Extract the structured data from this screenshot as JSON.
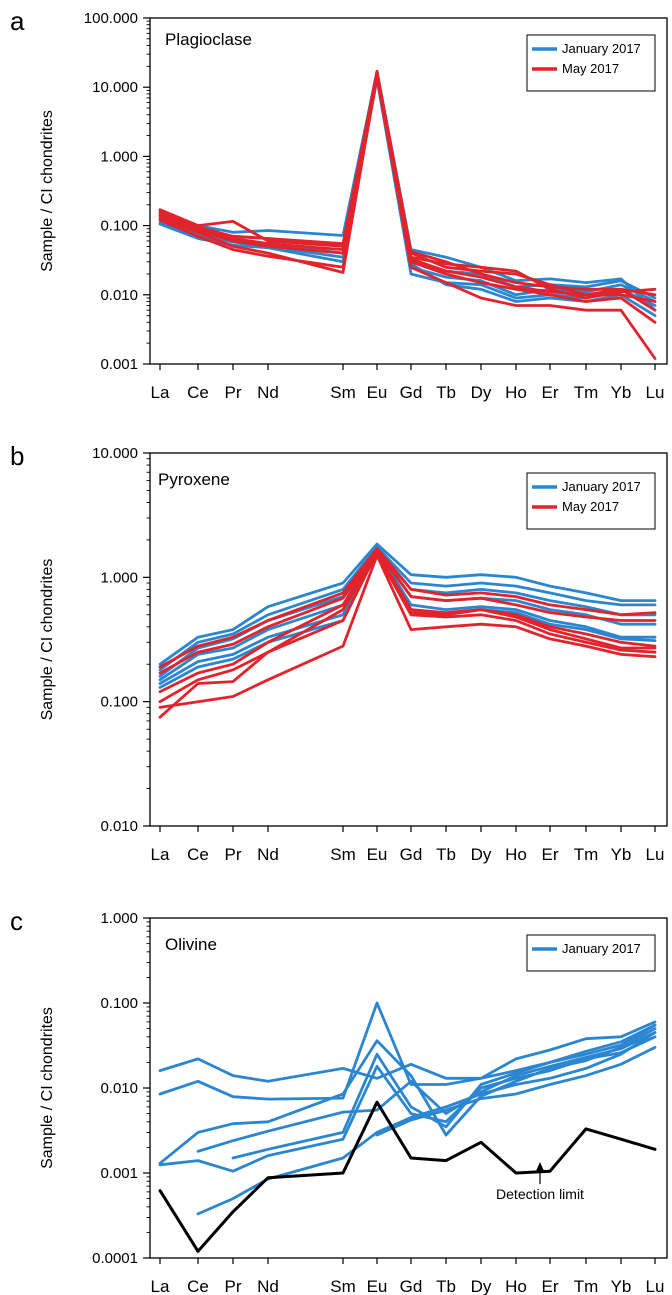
{
  "colors": {
    "january": "#2b86d1",
    "may": "#e3232b",
    "detection": "#000000",
    "axis": "#000000"
  },
  "chart_data": [
    {
      "type": "line",
      "panel": "a",
      "title": "Plagioclase",
      "ylabel": "Sample / CI chondrites",
      "yscale": "log",
      "ylim": [
        0.001,
        100
      ],
      "ytick_labels": [
        "0.001",
        "0.010",
        "0.100",
        "1.000",
        "10.000",
        "100.000"
      ],
      "categories": [
        "La",
        "Ce",
        "Pr",
        "Nd",
        "Sm",
        "Eu",
        "Gd",
        "Tb",
        "Dy",
        "Ho",
        "Er",
        "Tm",
        "Yb",
        "Lu"
      ],
      "legend": {
        "position": "top-right",
        "entries": [
          {
            "label": "January 2017",
            "color": "#2b86d1"
          },
          {
            "label": "May 2017",
            "color": "#e3232b"
          }
        ]
      },
      "annotations": [],
      "series": [
        {
          "group": "January 2017",
          "color": "#2b86d1",
          "values": [
            0.12,
            0.075,
            0.06,
            0.055,
            0.04,
            15,
            0.025,
            0.018,
            0.016,
            0.01,
            0.012,
            0.011,
            0.014,
            0.008
          ]
        },
        {
          "group": "January 2017",
          "color": "#2b86d1",
          "values": [
            0.105,
            0.065,
            0.052,
            0.048,
            0.03,
            13,
            0.02,
            0.015,
            0.014,
            0.009,
            0.01,
            0.009,
            0.012,
            0.007
          ]
        },
        {
          "group": "January 2017",
          "color": "#2b86d1",
          "values": [
            0.13,
            0.085,
            0.07,
            0.065,
            0.05,
            16,
            0.032,
            0.022,
            0.02,
            0.013,
            0.014,
            0.013,
            0.016,
            0.009
          ]
        },
        {
          "group": "January 2017",
          "color": "#2b86d1",
          "values": [
            0.14,
            0.1,
            0.08,
            0.085,
            0.072,
            17,
            0.045,
            0.035,
            0.025,
            0.016,
            0.017,
            0.015,
            0.017,
            0.006
          ]
        },
        {
          "group": "January 2017",
          "color": "#2b86d1",
          "values": [
            0.11,
            0.07,
            0.058,
            0.05,
            0.035,
            14,
            0.028,
            0.014,
            0.012,
            0.008,
            0.009,
            0.008,
            0.01,
            0.005
          ]
        },
        {
          "group": "May 2017",
          "color": "#e3232b",
          "values": [
            0.15,
            0.09,
            0.065,
            0.055,
            0.045,
            16,
            0.04,
            0.025,
            0.022,
            0.02,
            0.014,
            0.01,
            0.012,
            0.01
          ]
        },
        {
          "group": "May 2017",
          "color": "#e3232b",
          "values": [
            0.17,
            0.1,
            0.115,
            0.06,
            0.05,
            17,
            0.035,
            0.028,
            0.025,
            0.022,
            0.012,
            0.009,
            0.011,
            0.012
          ]
        },
        {
          "group": "May 2017",
          "color": "#e3232b",
          "values": [
            0.13,
            0.08,
            0.05,
            0.04,
            0.021,
            15,
            0.03,
            0.02,
            0.015,
            0.012,
            0.01,
            0.008,
            0.009,
            0.004
          ]
        },
        {
          "group": "May 2017",
          "color": "#e3232b",
          "values": [
            0.12,
            0.07,
            0.045,
            0.036,
            0.025,
            14,
            0.025,
            0.015,
            0.009,
            0.007,
            0.007,
            0.006,
            0.006,
            0.0012
          ]
        },
        {
          "group": "May 2017",
          "color": "#e3232b",
          "values": [
            0.16,
            0.095,
            0.07,
            0.065,
            0.055,
            16,
            0.042,
            0.03,
            0.02,
            0.015,
            0.013,
            0.012,
            0.012,
            0.006
          ]
        },
        {
          "group": "May 2017",
          "color": "#e3232b",
          "values": [
            0.14,
            0.085,
            0.06,
            0.05,
            0.04,
            15,
            0.033,
            0.022,
            0.018,
            0.013,
            0.011,
            0.01,
            0.01,
            0.008
          ]
        }
      ]
    },
    {
      "type": "line",
      "panel": "b",
      "title": "Pyroxene",
      "ylabel": "Sample / CI chondrites",
      "yscale": "log",
      "ylim": [
        0.01,
        10
      ],
      "ytick_labels": [
        "0.010",
        "0.100",
        "1.000",
        "10.000"
      ],
      "categories": [
        "La",
        "Ce",
        "Pr",
        "Nd",
        "Sm",
        "Eu",
        "Gd",
        "Tb",
        "Dy",
        "Ho",
        "Er",
        "Tm",
        "Yb",
        "Lu"
      ],
      "legend": {
        "position": "top-right",
        "entries": [
          {
            "label": "January 2017",
            "color": "#2b86d1"
          },
          {
            "label": "May 2017",
            "color": "#e3232b"
          }
        ]
      },
      "annotations": [],
      "series": [
        {
          "group": "January 2017",
          "color": "#2b86d1",
          "values": [
            0.2,
            0.33,
            0.38,
            0.58,
            0.9,
            1.85,
            1.05,
            1.0,
            1.05,
            1.0,
            0.85,
            0.75,
            0.65,
            0.65
          ]
        },
        {
          "group": "January 2017",
          "color": "#2b86d1",
          "values": [
            0.18,
            0.3,
            0.35,
            0.5,
            0.8,
            1.75,
            0.9,
            0.85,
            0.9,
            0.85,
            0.75,
            0.65,
            0.6,
            0.6
          ]
        },
        {
          "group": "January 2017",
          "color": "#2b86d1",
          "values": [
            0.16,
            0.27,
            0.32,
            0.45,
            0.7,
            1.7,
            0.8,
            0.75,
            0.8,
            0.75,
            0.65,
            0.58,
            0.5,
            0.5
          ]
        },
        {
          "group": "January 2017",
          "color": "#2b86d1",
          "values": [
            0.15,
            0.24,
            0.27,
            0.38,
            0.6,
            1.7,
            0.7,
            0.65,
            0.68,
            0.65,
            0.55,
            0.5,
            0.42,
            0.42
          ]
        },
        {
          "group": "January 2017",
          "color": "#2b86d1",
          "values": [
            0.14,
            0.21,
            0.24,
            0.33,
            0.5,
            1.65,
            0.6,
            0.55,
            0.58,
            0.55,
            0.45,
            0.4,
            0.33,
            0.33
          ]
        },
        {
          "group": "January 2017",
          "color": "#2b86d1",
          "values": [
            0.13,
            0.19,
            0.22,
            0.3,
            0.45,
            1.6,
            0.55,
            0.5,
            0.55,
            0.52,
            0.42,
            0.38,
            0.32,
            0.31
          ]
        },
        {
          "group": "May 2017",
          "color": "#e3232b",
          "values": [
            0.19,
            0.28,
            0.33,
            0.45,
            0.75,
            1.7,
            0.8,
            0.72,
            0.75,
            0.7,
            0.6,
            0.55,
            0.5,
            0.52
          ]
        },
        {
          "group": "May 2017",
          "color": "#e3232b",
          "values": [
            0.17,
            0.25,
            0.29,
            0.4,
            0.68,
            1.65,
            0.7,
            0.65,
            0.68,
            0.6,
            0.52,
            0.48,
            0.45,
            0.45
          ]
        },
        {
          "group": "May 2017",
          "color": "#e3232b",
          "values": [
            0.12,
            0.17,
            0.2,
            0.3,
            0.6,
            1.6,
            0.55,
            0.52,
            0.55,
            0.5,
            0.4,
            0.35,
            0.3,
            0.28
          ]
        },
        {
          "group": "May 2017",
          "color": "#e3232b",
          "values": [
            0.1,
            0.15,
            0.18,
            0.25,
            0.55,
            1.55,
            0.5,
            0.48,
            0.5,
            0.45,
            0.35,
            0.3,
            0.26,
            0.25
          ]
        },
        {
          "group": "May 2017",
          "color": "#e3232b",
          "values": [
            0.09,
            0.1,
            0.11,
            0.15,
            0.28,
            1.5,
            0.38,
            0.4,
            0.42,
            0.4,
            0.32,
            0.28,
            0.24,
            0.23
          ]
        },
        {
          "group": "May 2017",
          "color": "#e3232b",
          "values": [
            0.075,
            0.14,
            0.145,
            0.25,
            0.45,
            1.6,
            0.52,
            0.5,
            0.55,
            0.48,
            0.38,
            0.32,
            0.27,
            0.27
          ]
        }
      ]
    },
    {
      "type": "line",
      "panel": "c",
      "title": "Olivine",
      "ylabel": "Sample / CI chondrites",
      "yscale": "log",
      "ylim": [
        0.0001,
        1
      ],
      "ytick_labels": [
        "0.0001",
        "0.001",
        "0.010",
        "0.100",
        "1.000"
      ],
      "categories": [
        "La",
        "Ce",
        "Pr",
        "Nd",
        "Sm",
        "Eu",
        "Gd",
        "Tb",
        "Dy",
        "Ho",
        "Er",
        "Tm",
        "Yb",
        "Lu"
      ],
      "legend": {
        "position": "top-right",
        "entries": [
          {
            "label": "January 2017",
            "color": "#2b86d1"
          }
        ]
      },
      "annotations": [
        {
          "text": "Detection limit",
          "points_to": "Er"
        }
      ],
      "series": [
        {
          "group": "January 2017",
          "color": "#2b86d1",
          "values": [
            0.016,
            0.022,
            0.014,
            0.012,
            0.017,
            0.013,
            0.019,
            0.013,
            0.013,
            0.022,
            0.028,
            0.038,
            0.04,
            0.06
          ]
        },
        {
          "group": "January 2017",
          "color": "#2b86d1",
          "values": [
            0.0085,
            0.012,
            0.0079,
            0.0074,
            0.0076,
            0.1,
            0.011,
            0.011,
            0.013,
            0.016,
            0.02,
            0.027,
            0.035,
            0.055
          ]
        },
        {
          "group": "January 2017",
          "color": "#2b86d1",
          "values": [
            0.0013,
            0.003,
            0.0038,
            0.004,
            0.0085,
            0.036,
            0.014,
            0.0028,
            0.008,
            0.012,
            0.017,
            0.021,
            0.03,
            0.05
          ]
        },
        {
          "group": "January 2017",
          "color": "#2b86d1",
          "values": [
            null,
            0.0018,
            0.0024,
            0.0031,
            0.0052,
            0.0055,
            0.012,
            0.005,
            0.009,
            0.014,
            0.018,
            0.023,
            0.029,
            0.045
          ]
        },
        {
          "group": "January 2017",
          "color": "#2b86d1",
          "values": [
            null,
            null,
            0.0015,
            0.0019,
            0.003,
            0.025,
            0.006,
            0.0035,
            0.011,
            0.015,
            0.02,
            0.025,
            0.032,
            0.055
          ]
        },
        {
          "group": "January 2017",
          "color": "#2b86d1",
          "values": [
            0.00125,
            0.0014,
            0.00105,
            0.0016,
            0.0025,
            0.018,
            0.005,
            0.004,
            0.01,
            0.013,
            0.016,
            0.022,
            0.026,
            0.04
          ]
        },
        {
          "group": "January 2017",
          "color": "#2b86d1",
          "values": [
            null,
            0.00033,
            0.0005,
            0.00085,
            0.0015,
            0.003,
            0.0045,
            0.006,
            0.0085,
            0.011,
            0.013,
            0.017,
            0.025,
            0.045
          ]
        },
        {
          "group": "January 2017",
          "color": "#2b86d1",
          "values": [
            null,
            null,
            null,
            null,
            null,
            0.0028,
            0.0042,
            0.0055,
            0.0075,
            0.0085,
            0.011,
            0.014,
            0.019,
            0.03
          ]
        },
        {
          "group": "Detection limit",
          "color": "#000000",
          "values": [
            0.00062,
            0.00012,
            0.00035,
            0.00088,
            0.001,
            0.0068,
            0.0015,
            0.0014,
            0.0023,
            0.001,
            0.00105,
            0.0033,
            0.0025,
            0.0019
          ]
        }
      ]
    }
  ]
}
